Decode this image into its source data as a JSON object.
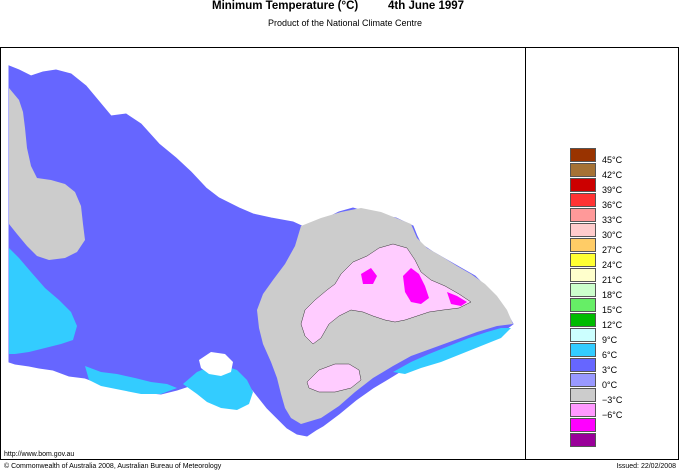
{
  "header": {
    "title": "Minimum Temperature (°C)",
    "date": "4th June 1997",
    "subtitle": "Product of the National Climate Centre"
  },
  "legend": {
    "items": [
      {
        "label": "45°C",
        "color": "#993300"
      },
      {
        "label": "42°C",
        "color": "#a57235"
      },
      {
        "label": "39°C",
        "color": "#cc0000"
      },
      {
        "label": "36°C",
        "color": "#ff3333"
      },
      {
        "label": "33°C",
        "color": "#ff9999"
      },
      {
        "label": "30°C",
        "color": "#ffcccc"
      },
      {
        "label": "27°C",
        "color": "#ffcc66"
      },
      {
        "label": "24°C",
        "color": "#ffff33"
      },
      {
        "label": "21°C",
        "color": "#ffffcc"
      },
      {
        "label": "18°C",
        "color": "#ccffcc"
      },
      {
        "label": "15°C",
        "color": "#66ee66"
      },
      {
        "label": "12°C",
        "color": "#00bb00"
      },
      {
        "label": "9°C",
        "color": "#ccffff"
      },
      {
        "label": "6°C",
        "color": "#33ccff"
      },
      {
        "label": "3°C",
        "color": "#6666ff"
      },
      {
        "label": "0°C",
        "color": "#9999ff"
      },
      {
        "label": "−3°C",
        "color": "#cccccc"
      },
      {
        "label": "−6°C",
        "color": "#ff99ff"
      },
      {
        "label": "",
        "color": "#ff00ff"
      },
      {
        "label": "",
        "color": "#990099"
      }
    ]
  },
  "map_colors": {
    "zone_3": "#6666ff",
    "zone_6": "#33ccff",
    "zone_0": "#cccccc",
    "zone_neg3": "#ffccff",
    "zone_neg6": "#ff00ff"
  },
  "footer": {
    "url": "http://www.bom.gov.au",
    "copyright": "© Commonwealth of Australia 2008, Australian Bureau of Meteorology",
    "issued": "Issued: 22/02/2008"
  }
}
